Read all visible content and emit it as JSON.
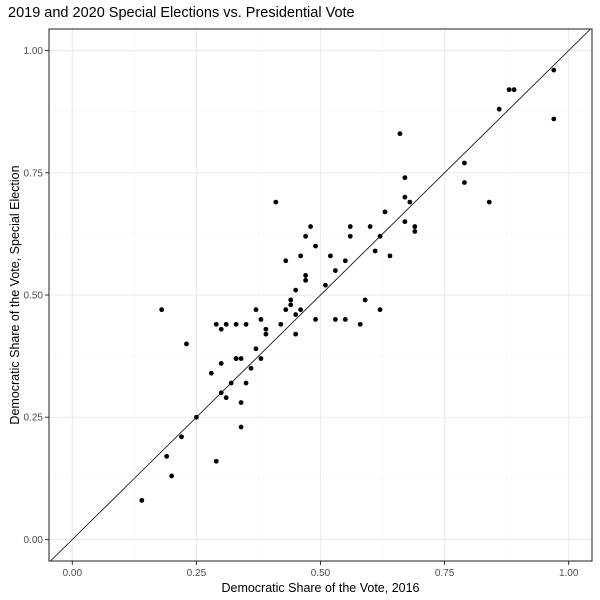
{
  "chart_data": {
    "type": "scatter",
    "title": "2019 and 2020 Special Elections vs. Presidential Vote",
    "xlabel": "Democratic Share of the Vote, 2016",
    "ylabel": "Democratic Share of the Vote, Special Election",
    "xlim": [
      -0.047,
      1.047
    ],
    "ylim": [
      -0.044,
      1.044
    ],
    "xticks": [
      0.0,
      0.25,
      0.5,
      0.75,
      1.0
    ],
    "yticks": [
      0.0,
      0.25,
      0.5,
      0.75,
      1.0
    ],
    "xtick_labels": [
      "0.00",
      "0.25",
      "0.50",
      "0.75",
      "1.00"
    ],
    "ytick_labels": [
      "0.00",
      "0.25",
      "0.50",
      "0.75",
      "1.00"
    ],
    "grid": true,
    "reference_line": "y = x",
    "colors": {
      "panel_border": "#333333",
      "grid_major": "#ebebeb",
      "grid_minor": "#f5f5f5",
      "point": "#000000",
      "reference_line": "#000000"
    },
    "points": [
      [
        0.14,
        0.08
      ],
      [
        0.18,
        0.47
      ],
      [
        0.19,
        0.17
      ],
      [
        0.2,
        0.13
      ],
      [
        0.22,
        0.21
      ],
      [
        0.23,
        0.4
      ],
      [
        0.25,
        0.25
      ],
      [
        0.28,
        0.34
      ],
      [
        0.29,
        0.44
      ],
      [
        0.29,
        0.16
      ],
      [
        0.3,
        0.36
      ],
      [
        0.3,
        0.43
      ],
      [
        0.3,
        0.3
      ],
      [
        0.31,
        0.29
      ],
      [
        0.31,
        0.44
      ],
      [
        0.32,
        0.32
      ],
      [
        0.33,
        0.37
      ],
      [
        0.33,
        0.37
      ],
      [
        0.33,
        0.44
      ],
      [
        0.34,
        0.23
      ],
      [
        0.34,
        0.37
      ],
      [
        0.34,
        0.28
      ],
      [
        0.35,
        0.32
      ],
      [
        0.35,
        0.44
      ],
      [
        0.36,
        0.35
      ],
      [
        0.37,
        0.39
      ],
      [
        0.37,
        0.47
      ],
      [
        0.38,
        0.37
      ],
      [
        0.38,
        0.45
      ],
      [
        0.39,
        0.42
      ],
      [
        0.39,
        0.43
      ],
      [
        0.41,
        0.69
      ],
      [
        0.42,
        0.44
      ],
      [
        0.43,
        0.47
      ],
      [
        0.43,
        0.57
      ],
      [
        0.44,
        0.48
      ],
      [
        0.44,
        0.49
      ],
      [
        0.45,
        0.46
      ],
      [
        0.45,
        0.42
      ],
      [
        0.45,
        0.51
      ],
      [
        0.46,
        0.58
      ],
      [
        0.46,
        0.47
      ],
      [
        0.47,
        0.62
      ],
      [
        0.47,
        0.53
      ],
      [
        0.47,
        0.54
      ],
      [
        0.48,
        0.64
      ],
      [
        0.49,
        0.6
      ],
      [
        0.49,
        0.45
      ],
      [
        0.51,
        0.52
      ],
      [
        0.52,
        0.58
      ],
      [
        0.53,
        0.55
      ],
      [
        0.53,
        0.45
      ],
      [
        0.55,
        0.45
      ],
      [
        0.55,
        0.57
      ],
      [
        0.56,
        0.64
      ],
      [
        0.56,
        0.62
      ],
      [
        0.58,
        0.44
      ],
      [
        0.59,
        0.49
      ],
      [
        0.6,
        0.64
      ],
      [
        0.61,
        0.59
      ],
      [
        0.62,
        0.47
      ],
      [
        0.62,
        0.62
      ],
      [
        0.63,
        0.67
      ],
      [
        0.64,
        0.58
      ],
      [
        0.66,
        0.83
      ],
      [
        0.67,
        0.74
      ],
      [
        0.67,
        0.7
      ],
      [
        0.67,
        0.65
      ],
      [
        0.68,
        0.69
      ],
      [
        0.69,
        0.63
      ],
      [
        0.69,
        0.64
      ],
      [
        0.79,
        0.77
      ],
      [
        0.79,
        0.73
      ],
      [
        0.84,
        0.69
      ],
      [
        0.86,
        0.88
      ],
      [
        0.88,
        0.92
      ],
      [
        0.89,
        0.92
      ],
      [
        0.97,
        0.96
      ],
      [
        0.97,
        0.86
      ]
    ]
  }
}
